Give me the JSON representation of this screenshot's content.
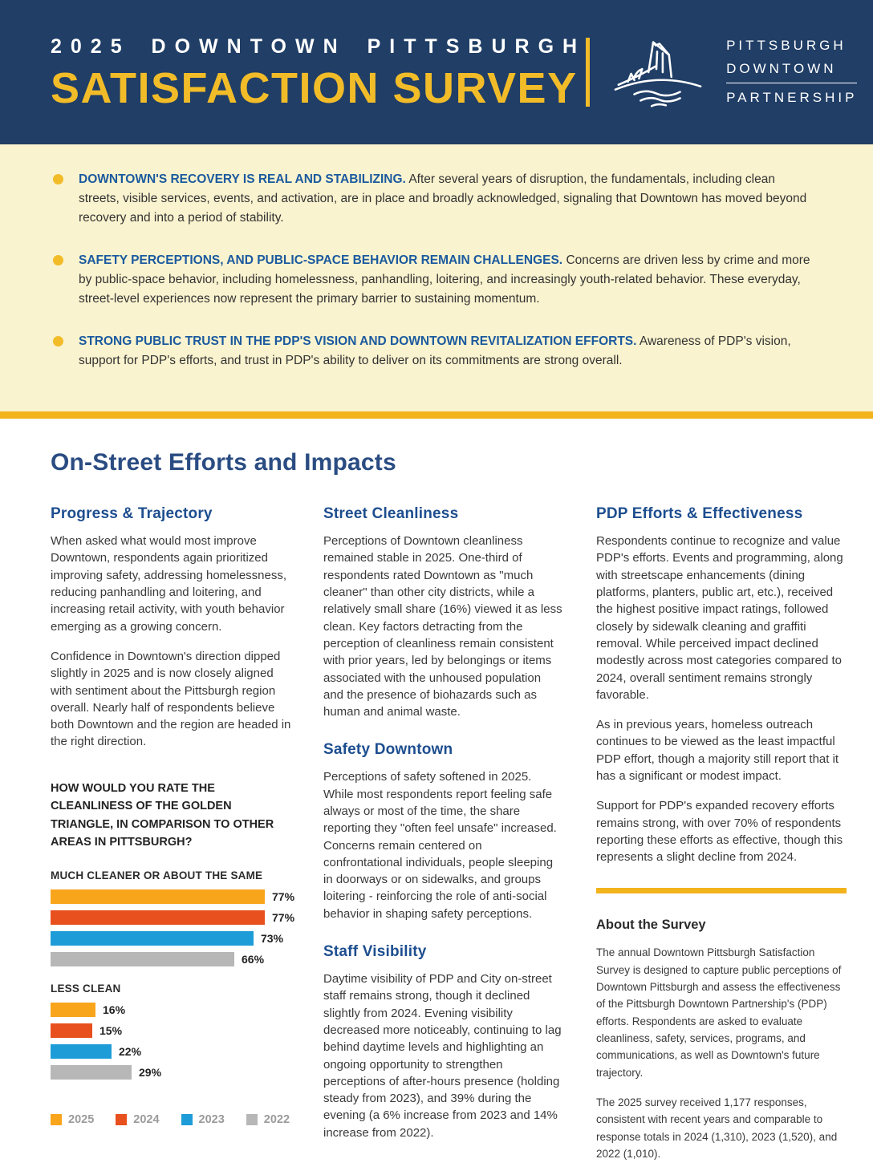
{
  "colors": {
    "navy": "#203e66",
    "gold": "#f2bc29",
    "gold_rule": "#f2b31d",
    "cream": "#faf3cf",
    "heading_blue": "#1d4e8f",
    "section_blue": "#2a4c82",
    "body_text": "#3a3a3a"
  },
  "header": {
    "kicker": "2025 DOWNTOWN PITTSBURGH",
    "title": "SATISFACTION SURVEY",
    "logo": {
      "line1": "PITTSBURGH",
      "line2": "DOWNTOWN",
      "line3": "PARTNERSHIP"
    }
  },
  "key_findings": [
    {
      "lead": "DOWNTOWN'S RECOVERY IS REAL AND STABILIZING.",
      "body": "After several years of disruption, the fundamentals, including clean streets, visible services, events, and activation, are in place and broadly acknowledged, signaling that Downtown has moved beyond recovery and into a period of stability."
    },
    {
      "lead": "SAFETY PERCEPTIONS, AND PUBLIC-SPACE BEHAVIOR REMAIN CHALLENGES.",
      "body": "Concerns are driven less by crime and more by public-space behavior, including homelessness, panhandling, loitering, and increasingly youth-related behavior. These everyday, street-level experiences now represent the primary barrier to sustaining momentum."
    },
    {
      "lead": "STRONG PUBLIC TRUST IN THE PDP'S VISION AND DOWNTOWN REVITALIZATION EFFORTS.",
      "body": "Awareness of PDP's vision, support for PDP's efforts, and trust in PDP's ability to deliver on its commitments are strong overall."
    }
  ],
  "section_title": "On-Street Efforts and Impacts",
  "col1": {
    "heading": "Progress & Trajectory",
    "p1": "When asked what would most improve Downtown, respondents again prioritized improving safety, addressing homelessness, reducing panhandling and loitering, and increasing retail activity, with youth behavior emerging as a growing concern.",
    "p2": "Confidence in Downtown's direction dipped slightly in 2025 and is now closely aligned with sentiment about the Pittsburgh region overall. Nearly half of respondents believe both Downtown and the region are headed in the right direction."
  },
  "col2": {
    "heading1": "Street Cleanliness",
    "p1": "Perceptions of Downtown cleanliness remained stable in 2025. One-third of respondents rated Downtown as \"much cleaner\" than other city districts, while a relatively small share (16%) viewed it as less clean. Key factors detracting from the perception of cleanliness remain consistent with prior years, led by belongings or items associated with the unhoused population and the presence of biohazards such as human and animal waste.",
    "heading2": "Safety Downtown",
    "p2": "Perceptions of safety softened in 2025. While most respondents report feeling safe always or most of the time, the share reporting they \"often feel unsafe\" increased. Concerns remain centered on confrontational individuals, people sleeping in doorways or on sidewalks, and groups loitering - reinforcing the role of anti-social behavior in shaping safety perceptions.",
    "heading3": "Staff Visibility",
    "p3": "Daytime visibility of PDP and City on-street staff remains strong, though it declined slightly from 2024. Evening visibility decreased more noticeably, continuing to lag behind daytime levels and highlighting an ongoing opportunity to strengthen perceptions of after-hours presence (holding steady from 2023), and 39% during the evening (a 6% increase from 2023 and 14% increase from 2022)."
  },
  "col3": {
    "heading": "PDP Efforts & Effectiveness",
    "p1": "Respondents continue to recognize and value PDP's efforts. Events and programming, along with streetscape enhancements (dining platforms, planters, public art, etc.), received the highest positive impact ratings, followed closely by sidewalk cleaning and graffiti removal. While perceived impact declined modestly across most categories compared to 2024, overall sentiment remains strongly favorable.",
    "p2": "As in previous years, homeless outreach continues to be viewed as the least impactful PDP effort, though a majority still report that it has a significant or modest impact.",
    "p3": "Support for PDP's expanded recovery efforts remains strong, with over 70% of respondents reporting these efforts as effective, though this represents a slight decline from 2024.",
    "about_heading": "About the Survey",
    "about_p1": "The annual Downtown Pittsburgh Satisfaction Survey is designed to capture public perceptions of Downtown Pittsburgh and assess the effectiveness of the Pittsburgh Downtown Partnership's (PDP) efforts. Respondents are asked to evaluate cleanliness, safety, services, programs, and communications, as well as Downtown's future trajectory.",
    "about_p2": "The 2025 survey received 1,177 responses, consistent with recent years and comparable to response totals in 2024 (1,310), 2023 (1,520), and 2022 (1,010)."
  },
  "chart_data": {
    "type": "bar",
    "orientation": "horizontal",
    "title": "HOW WOULD YOU RATE THE CLEANLINESS OF THE GOLDEN TRIANGLE, IN COMPARISON TO OTHER AREAS IN PITTSBURGH?",
    "unit": "%",
    "xlim": [
      0,
      100
    ],
    "legend_position": "bottom",
    "series": [
      {
        "name": "2025",
        "color": "#f9a51c"
      },
      {
        "name": "2024",
        "color": "#e8501e"
      },
      {
        "name": "2023",
        "color": "#1e9cd8"
      },
      {
        "name": "2022",
        "color": "#b7b7b7"
      }
    ],
    "groups": [
      {
        "label": "MUCH CLEANER OR ABOUT THE SAME",
        "values": [
          77,
          77,
          73,
          66
        ]
      },
      {
        "label": "LESS CLEAN",
        "values": [
          16,
          15,
          22,
          29
        ]
      }
    ]
  }
}
